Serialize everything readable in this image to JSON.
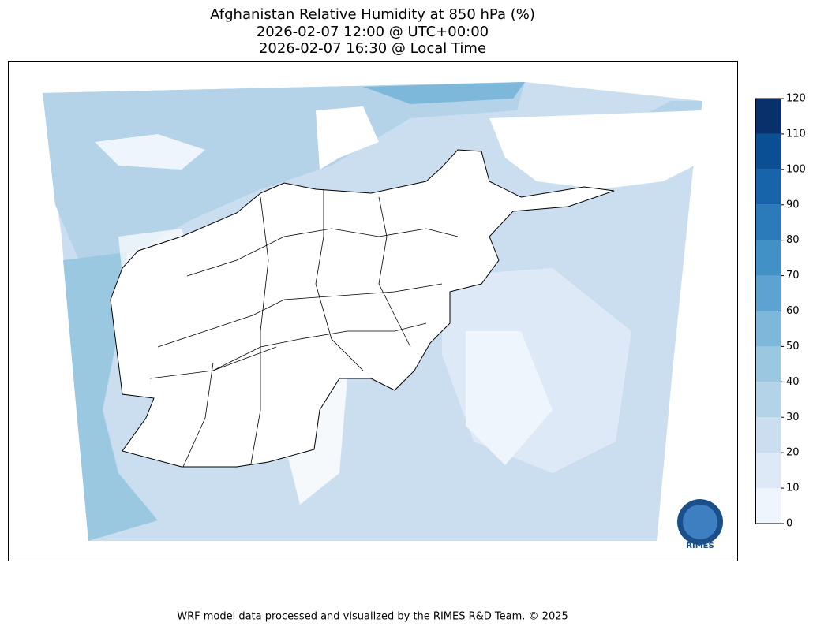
{
  "title": [
    "Afghanistan Relative Humidity at 850 hPa (%)",
    "2026-02-07 12:00 @ UTC+00:00",
    "2026-02-07 16:30 @ Local Time"
  ],
  "colorbar": {
    "ticks": [
      0,
      10,
      20,
      30,
      40,
      50,
      60,
      70,
      80,
      90,
      100,
      110,
      120
    ],
    "colors": [
      "#eff5fc",
      "#dde9f6",
      "#cadef0",
      "#b4d3e9",
      "#9ac8e0",
      "#7db8da",
      "#5da3d1",
      "#4191c6",
      "#2b7bba",
      "#1764ab",
      "#0a4f93",
      "#08306b"
    ]
  },
  "logo": "RIMES",
  "footer": "WRF model data processed and visualized by the RIMES R&D Team. © 2025"
}
